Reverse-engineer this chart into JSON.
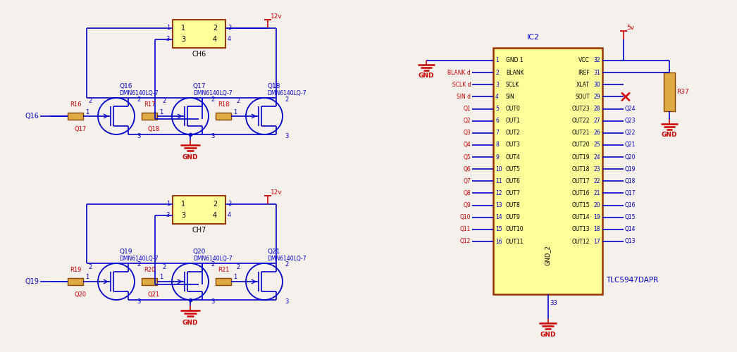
{
  "bg_color": "#f5f0eb",
  "wire_color": "#0000cc",
  "text_color_blue": "#0000cc",
  "text_color_red": "#cc0000",
  "comp_fill": "#ffff99",
  "comp_border": "#993300",
  "gnd_color": "#cc0000",
  "left_signals": [
    "GND 1",
    "BLANK",
    "SCLK",
    "SIN",
    "OUT0",
    "OUT1",
    "OUT2",
    "OUT3",
    "OUT4",
    "OUT5",
    "OUT6",
    "OUT7",
    "OUT8",
    "OUT9",
    "OUT10",
    "OUT11"
  ],
  "right_signals": [
    "VCC",
    "IREF",
    "XLAT",
    "SOUT",
    "OUT23",
    "OUT22",
    "OUT21",
    "OUT20",
    "OUT19",
    "OUT18",
    "OUT17",
    "OUT16",
    "OUT15",
    "OUT14",
    "OUT13",
    "OUT12"
  ],
  "left_pin_nums": [
    "1",
    "2",
    "3",
    "4",
    "5",
    "6",
    "7",
    "8",
    "9",
    "10",
    "11",
    "12",
    "13",
    "14",
    "15",
    "16"
  ],
  "right_pin_nums": [
    "32",
    "31",
    "30",
    "29",
    "28",
    "27",
    "26",
    "25",
    "24",
    "23",
    "22",
    "21",
    "20",
    "19",
    "18",
    "17"
  ],
  "left_net": [
    "",
    "BLANK d",
    "SCLK d",
    "SIN d",
    "Q1",
    "Q2",
    "Q3",
    "Q4",
    "Q5",
    "Q6",
    "Q7",
    "Q8",
    "Q9",
    "Q10",
    "Q11",
    "Q12"
  ],
  "right_net": [
    "",
    "",
    "",
    "",
    "Q24",
    "Q23",
    "Q22",
    "Q21",
    "Q20",
    "Q19",
    "Q18",
    "Q17",
    "Q16",
    "Q15",
    "Q14",
    "Q13"
  ]
}
